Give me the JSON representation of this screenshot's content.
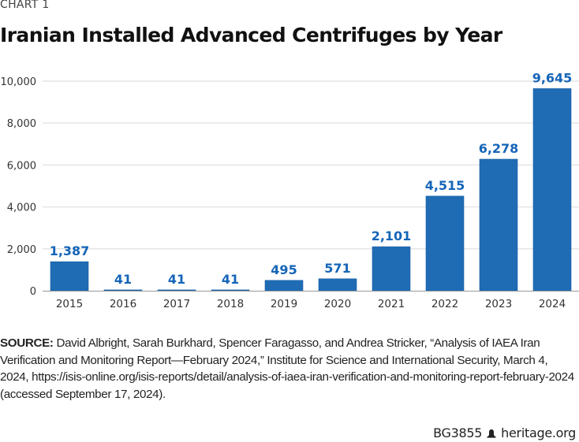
{
  "header": {
    "kicker": "CHART 1",
    "title": "Iranian Installed Advanced Centrifuges by Year"
  },
  "chart_data": {
    "type": "bar",
    "title": "Iranian Installed Advanced Centrifuges by Year",
    "xlabel": "",
    "ylabel": "",
    "categories": [
      "2015",
      "2016",
      "2017",
      "2018",
      "2019",
      "2020",
      "2021",
      "2022",
      "2023",
      "2024"
    ],
    "values": [
      1387,
      41,
      41,
      41,
      495,
      571,
      2101,
      4515,
      6278,
      9645
    ],
    "data_labels": [
      "1,387",
      "41",
      "41",
      "41",
      "495",
      "571",
      "2,101",
      "4,515",
      "6,278",
      "9,645"
    ],
    "ylim": [
      0,
      10000
    ],
    "yticks": [
      0,
      2000,
      4000,
      6000,
      8000,
      10000
    ],
    "ytick_labels": [
      "0",
      "2,000",
      "4,000",
      "6,000",
      "8,000",
      "10,000"
    ],
    "grid": true,
    "legend": "none",
    "colors": {
      "bar": "#1f6cb5",
      "label": "#1565b8",
      "grid": "#e6e6e6",
      "axis": "#9a9a9a"
    }
  },
  "source": {
    "label": "SOURCE:",
    "text": " David Albright, Sarah Burkhard, Spencer Faragasso, and Andrea Stricker, “Analysis of IAEA Iran Verification and Monitoring Report—February 2024,” Institute for Science and International Security, March 4, 2024, https://isis-online.org/isis-reports/detail/analysis-of-iaea-iran-verification-and-monitoring-report-february-2024 (accessed September 17, 2024)."
  },
  "footer": {
    "code": "BG3855",
    "icon": "liberty-bell-icon",
    "site": "heritage.org"
  }
}
